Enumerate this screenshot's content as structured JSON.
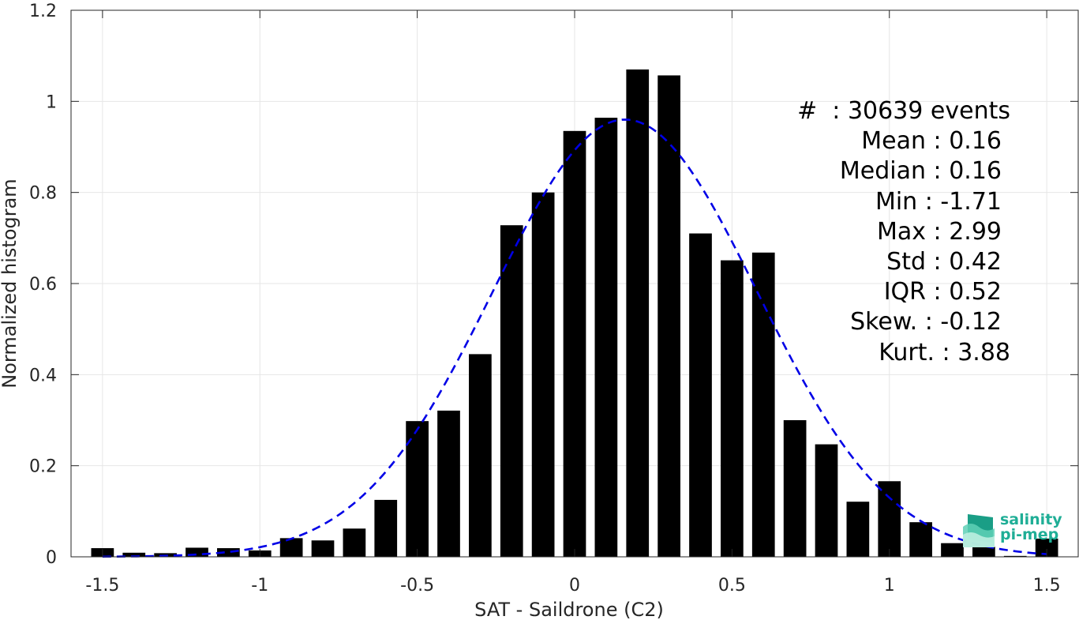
{
  "chart_data": {
    "type": "bar",
    "xlabel": "SAT - Saildrone (C2)",
    "ylabel": "Normalized histogram",
    "xlim": [
      -1.6,
      1.6
    ],
    "ylim": [
      0,
      1.2
    ],
    "xticks": [
      "-1.5",
      "-1",
      "-0.5",
      "0",
      "0.5",
      "1",
      "1.5"
    ],
    "yticks": [
      "0",
      "0.2",
      "0.4",
      "0.6",
      "0.8",
      "1",
      "1.2"
    ],
    "grid": true,
    "bar_color": "#000000",
    "curve_color": "#0000e6",
    "bins": {
      "centers": [
        -1.5,
        -1.4,
        -1.3,
        -1.2,
        -1.1,
        -1.0,
        -0.9,
        -0.8,
        -0.7,
        -0.6,
        -0.5,
        -0.4,
        -0.3,
        -0.2,
        -0.1,
        0.0,
        0.1,
        0.2,
        0.3,
        0.4,
        0.5,
        0.6,
        0.7,
        0.8,
        0.9,
        1.0,
        1.1,
        1.2,
        1.3,
        1.4,
        1.5
      ],
      "values": [
        0.019,
        0.009,
        0.008,
        0.02,
        0.019,
        0.014,
        0.041,
        0.036,
        0.062,
        0.125,
        0.298,
        0.321,
        0.445,
        0.728,
        0.8,
        0.935,
        0.964,
        1.07,
        1.057,
        0.71,
        0.651,
        0.668,
        0.3,
        0.247,
        0.121,
        0.166,
        0.076,
        0.03,
        0.022,
        0.002,
        0.04
      ]
    },
    "fit_curve": {
      "label": "",
      "style": "dashed",
      "mean": 0.16,
      "std": 0.42,
      "peak": 0.96
    }
  },
  "stats": {
    "events": "#  : 30639 events",
    "mean": "Mean : 0.16",
    "median": "Median : 0.16",
    "min": "Min : -1.71",
    "max": "Max : 2.99",
    "std": "Std : 0.42",
    "iqr": "IQR : 0.52",
    "skew": "Skew. : -0.12",
    "kurt": "Kurt. : 3.88"
  },
  "logo": {
    "line1": "salinity",
    "line2": "pi-mep",
    "color": "#1fae96"
  }
}
